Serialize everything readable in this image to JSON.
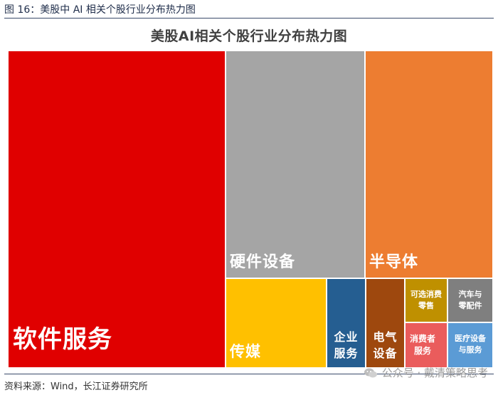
{
  "figure": {
    "caption": "图 16：美股中 AI 相关个股行业分布热力图",
    "source": "资料来源：Wind，长江证券研究所",
    "watermark": "公众号 · 戴清策略思考"
  },
  "chart_data": {
    "type": "treemap",
    "title": "美股AI相关个股行业分布热力图",
    "items": [
      {
        "label": "软件服务",
        "value": 10.0,
        "color": "#e00000"
      },
      {
        "label": "硬件设备",
        "value": 4.3,
        "color": "#a5a5a5"
      },
      {
        "label": "半导体",
        "value": 4.2,
        "color": "#ed7d31"
      },
      {
        "label": "传媒",
        "value": 0.75,
        "color": "#ffc000"
      },
      {
        "label": "企业服务",
        "value": 0.32,
        "color": "#255e91"
      },
      {
        "label": "电气设备",
        "value": 0.32,
        "color": "#9e480e"
      },
      {
        "label": "可选消费零售",
        "value": 0.2,
        "color": "#bf9000"
      },
      {
        "label": "汽车与零配件",
        "value": 0.2,
        "color": "#7f7f7f"
      },
      {
        "label": "消费者服务",
        "value": 0.23,
        "color": "#ea5c5c"
      },
      {
        "label": "医疗设备与服务",
        "value": 0.23,
        "color": "#5b9bd5"
      }
    ]
  }
}
